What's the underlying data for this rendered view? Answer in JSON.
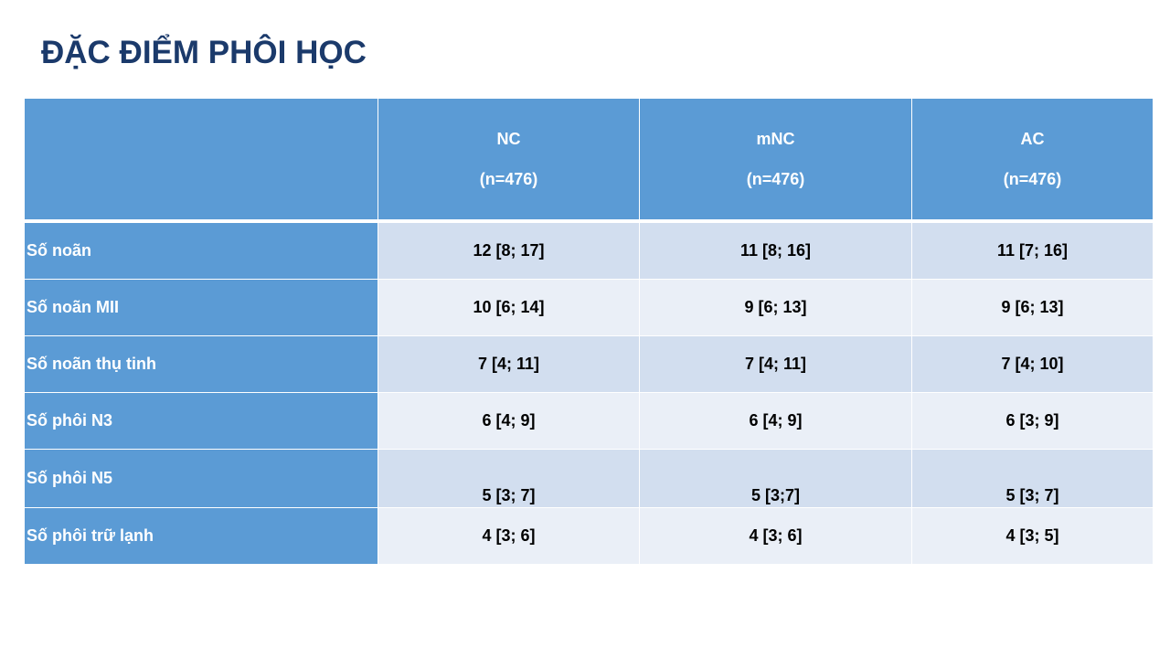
{
  "title": "ĐẶC ĐIỂM PHÔI HỌC",
  "table": {
    "columns": [
      {
        "name": "NC",
        "n": "(n=476)"
      },
      {
        "name": "mNC",
        "n": "(n=476)"
      },
      {
        "name": "AC",
        "n": "(n=476)"
      }
    ],
    "rows": [
      {
        "label": "Số noãn",
        "values": [
          "12 [8; 17]",
          "11 [8; 16]",
          "11 [7; 16]"
        ]
      },
      {
        "label": "Số noãn MII",
        "values": [
          "10 [6; 14]",
          "9 [6; 13]",
          "9 [6; 13]"
        ]
      },
      {
        "label": "Số noãn thụ tinh",
        "values": [
          "7 [4; 11]",
          "7 [4; 11]",
          "7 [4; 10]"
        ]
      },
      {
        "label": "Số phôi N3",
        "values": [
          "6 [4; 9]",
          "6 [4; 9]",
          "6 [3; 9]"
        ]
      },
      {
        "label": "Số phôi N5",
        "values": [
          "5 [3; 7]",
          "5 [3;7]",
          "5 [3; 7]"
        ]
      },
      {
        "label": "Số phôi trữ lạnh",
        "values": [
          "4 [3; 6]",
          "4 [3; 6]",
          "4 [3; 5]"
        ]
      }
    ]
  }
}
